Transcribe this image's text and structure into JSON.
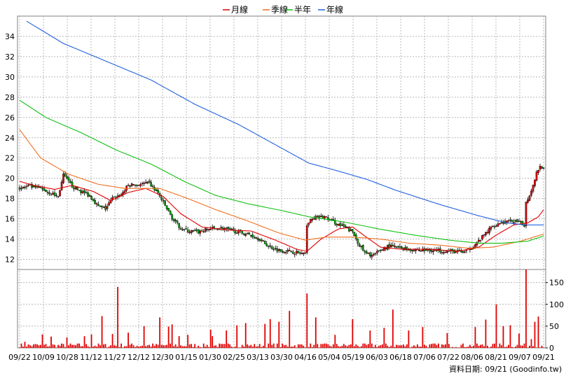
{
  "chart_data": {
    "type": "candlestick-with-volume",
    "legend": [
      {
        "name": "月線",
        "color": "#e00000"
      },
      {
        "name": "季線",
        "color": "#f07020"
      },
      {
        "name": "半年",
        "color": "#10c010"
      },
      {
        "name": "年線",
        "color": "#2060e0"
      }
    ],
    "legend_placement": "top-center",
    "grid": true,
    "price_axis": {
      "side": "left",
      "ylim": [
        11,
        36
      ],
      "ticks": [
        12,
        14,
        16,
        18,
        20,
        22,
        24,
        26,
        28,
        30,
        32,
        34
      ]
    },
    "volume_axis": {
      "side": "right",
      "ylim": [
        0,
        180
      ],
      "ticks": [
        0,
        50,
        100,
        150
      ]
    },
    "x_ticks": [
      "09/22",
      "10/09",
      "10/28",
      "11/12",
      "11/27",
      "12/12",
      "12/30",
      "01/15",
      "01/30",
      "02/25",
      "03/13",
      "03/30",
      "04/16",
      "05/04",
      "05/19",
      "06/03",
      "06/18",
      "07/06",
      "07/22",
      "08/06",
      "08/21",
      "09/07",
      "09/21"
    ],
    "footer": "資料日期: 09/21 (Goodinfo.tw)",
    "candle_colors": {
      "up": "#e00000",
      "down": "#00a000"
    },
    "volume_color": "#e00000",
    "price_anchors": [
      [
        0,
        19.0
      ],
      [
        5,
        19.2
      ],
      [
        12,
        19.0
      ],
      [
        18,
        18.5
      ],
      [
        22,
        18.2
      ],
      [
        25,
        20.3
      ],
      [
        30,
        19.2
      ],
      [
        35,
        18.7
      ],
      [
        40,
        18.3
      ],
      [
        45,
        17.2
      ],
      [
        49,
        17.0
      ],
      [
        53,
        18.0
      ],
      [
        58,
        18.4
      ],
      [
        62,
        19.3
      ],
      [
        68,
        19.4
      ],
      [
        74,
        19.5
      ],
      [
        79,
        18.5
      ],
      [
        84,
        17.0
      ],
      [
        88,
        15.8
      ],
      [
        92,
        15.1
      ],
      [
        96,
        14.8
      ],
      [
        102,
        14.7
      ],
      [
        108,
        15.0
      ],
      [
        115,
        15.1
      ],
      [
        122,
        14.8
      ],
      [
        130,
        14.5
      ],
      [
        136,
        14.1
      ],
      [
        142,
        13.3
      ],
      [
        148,
        12.9
      ],
      [
        154,
        12.8
      ],
      [
        160,
        12.6
      ],
      [
        163,
        12.5
      ],
      [
        164,
        15.5
      ],
      [
        168,
        16.1
      ],
      [
        174,
        16.2
      ],
      [
        180,
        15.6
      ],
      [
        186,
        15.1
      ],
      [
        190,
        14.7
      ],
      [
        193,
        13.7
      ],
      [
        197,
        12.6
      ],
      [
        202,
        12.4
      ],
      [
        206,
        12.9
      ],
      [
        210,
        13.3
      ],
      [
        215,
        13.2
      ],
      [
        222,
        13.0
      ],
      [
        230,
        12.9
      ],
      [
        238,
        12.9
      ],
      [
        246,
        12.8
      ],
      [
        254,
        12.7
      ],
      [
        258,
        13.2
      ],
      [
        262,
        13.8
      ],
      [
        266,
        14.6
      ],
      [
        270,
        15.3
      ],
      [
        274,
        15.6
      ],
      [
        278,
        15.7
      ],
      [
        282,
        15.8
      ],
      [
        286,
        15.5
      ],
      [
        288,
        15.4
      ],
      [
        289,
        17.6
      ],
      [
        292,
        18.8
      ],
      [
        295,
        20.6
      ],
      [
        297,
        21.2
      ],
      [
        299,
        21.0
      ]
    ],
    "ma_month": [
      [
        0,
        19.7
      ],
      [
        8,
        19.3
      ],
      [
        20,
        18.9
      ],
      [
        30,
        19.3
      ],
      [
        42,
        18.7
      ],
      [
        52,
        17.8
      ],
      [
        62,
        18.6
      ],
      [
        72,
        19.0
      ],
      [
        82,
        18.2
      ],
      [
        92,
        16.5
      ],
      [
        104,
        15.2
      ],
      [
        118,
        14.9
      ],
      [
        132,
        14.8
      ],
      [
        146,
        13.9
      ],
      [
        158,
        13.0
      ],
      [
        164,
        12.8
      ],
      [
        172,
        14.0
      ],
      [
        182,
        15.0
      ],
      [
        190,
        15.2
      ],
      [
        197,
        14.3
      ],
      [
        206,
        13.2
      ],
      [
        218,
        13.0
      ],
      [
        234,
        13.0
      ],
      [
        250,
        12.8
      ],
      [
        262,
        13.2
      ],
      [
        272,
        14.4
      ],
      [
        282,
        15.4
      ],
      [
        290,
        15.6
      ],
      [
        296,
        16.2
      ],
      [
        299,
        16.9
      ]
    ],
    "ma_quarter": [
      [
        0,
        24.8
      ],
      [
        12,
        22.0
      ],
      [
        28,
        20.4
      ],
      [
        45,
        19.4
      ],
      [
        60,
        19.0
      ],
      [
        80,
        19.0
      ],
      [
        96,
        18.0
      ],
      [
        112,
        16.9
      ],
      [
        130,
        15.8
      ],
      [
        148,
        14.6
      ],
      [
        163,
        13.9
      ],
      [
        175,
        14.2
      ],
      [
        190,
        14.2
      ],
      [
        206,
        14.0
      ],
      [
        222,
        13.6
      ],
      [
        240,
        13.4
      ],
      [
        256,
        13.1
      ],
      [
        270,
        13.2
      ],
      [
        286,
        13.8
      ],
      [
        299,
        14.5
      ]
    ],
    "ma_half": [
      [
        0,
        27.7
      ],
      [
        15,
        26.0
      ],
      [
        35,
        24.5
      ],
      [
        55,
        22.8
      ],
      [
        75,
        21.4
      ],
      [
        95,
        19.6
      ],
      [
        112,
        18.3
      ],
      [
        130,
        17.5
      ],
      [
        150,
        16.8
      ],
      [
        165,
        16.2
      ],
      [
        185,
        15.7
      ],
      [
        205,
        15.0
      ],
      [
        225,
        14.4
      ],
      [
        245,
        13.9
      ],
      [
        262,
        13.6
      ],
      [
        276,
        13.6
      ],
      [
        290,
        13.8
      ],
      [
        299,
        14.3
      ]
    ],
    "ma_year": [
      [
        4,
        35.5
      ],
      [
        25,
        33.3
      ],
      [
        50,
        31.5
      ],
      [
        75,
        29.7
      ],
      [
        100,
        27.3
      ],
      [
        125,
        25.3
      ],
      [
        145,
        23.4
      ],
      [
        165,
        21.5
      ],
      [
        180,
        20.8
      ],
      [
        198,
        19.9
      ],
      [
        215,
        18.8
      ],
      [
        240,
        17.4
      ],
      [
        262,
        16.3
      ],
      [
        278,
        15.6
      ],
      [
        288,
        15.4
      ],
      [
        299,
        15.4
      ]
    ],
    "volume_spikes": [
      [
        3,
        14
      ],
      [
        9,
        9
      ],
      [
        13,
        31
      ],
      [
        18,
        26
      ],
      [
        27,
        24
      ],
      [
        37,
        27
      ],
      [
        41,
        31
      ],
      [
        47,
        73
      ],
      [
        53,
        32
      ],
      [
        56,
        140
      ],
      [
        62,
        35
      ],
      [
        71,
        50
      ],
      [
        80,
        70
      ],
      [
        85,
        49
      ],
      [
        87,
        54
      ],
      [
        91,
        27
      ],
      [
        96,
        30
      ],
      [
        109,
        42
      ],
      [
        110,
        27
      ],
      [
        118,
        40
      ],
      [
        124,
        52
      ],
      [
        129,
        57
      ],
      [
        140,
        55
      ],
      [
        143,
        66
      ],
      [
        148,
        60
      ],
      [
        154,
        85
      ],
      [
        164,
        125
      ],
      [
        169,
        70
      ],
      [
        180,
        30
      ],
      [
        190,
        66
      ],
      [
        200,
        40
      ],
      [
        208,
        46
      ],
      [
        213,
        88
      ],
      [
        222,
        40
      ],
      [
        230,
        48
      ],
      [
        244,
        34
      ],
      [
        260,
        48
      ],
      [
        266,
        65
      ],
      [
        272,
        100
      ],
      [
        276,
        50
      ],
      [
        280,
        52
      ],
      [
        285,
        33
      ],
      [
        289,
        180
      ],
      [
        292,
        20
      ],
      [
        294,
        60
      ],
      [
        296,
        72
      ]
    ]
  }
}
